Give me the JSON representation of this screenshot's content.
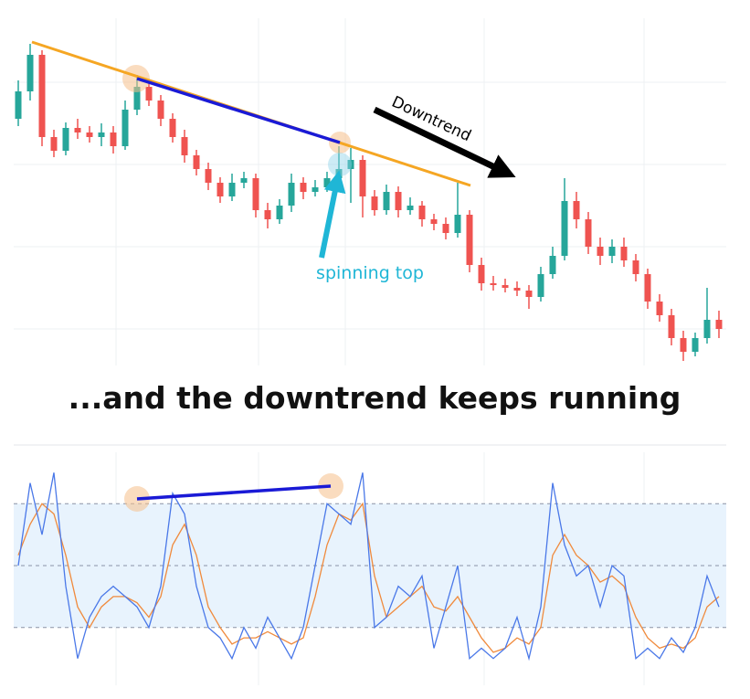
{
  "chart_data": [
    {
      "type": "candlestick",
      "title": "...and the downtrend keeps running",
      "annotations": [
        "Downtrend",
        "spinning top"
      ],
      "colors": {
        "up": "#26a69a",
        "down": "#ef5350"
      },
      "ylim": [
        0,
        400
      ],
      "open": [
        270,
        300,
        340,
        250,
        235,
        260,
        255,
        250,
        255,
        240,
        280,
        305,
        290,
        270,
        250,
        230,
        215,
        200,
        185,
        200,
        205,
        170,
        160,
        175,
        200,
        190,
        195,
        205,
        215,
        225,
        185,
        170,
        190,
        170,
        175,
        160,
        155,
        145,
        165,
        110,
        90,
        88,
        85,
        82,
        75,
        100,
        120,
        180,
        160,
        130,
        120,
        130,
        115,
        100,
        70,
        55,
        30,
        15,
        30,
        50
      ],
      "high": [
        312,
        352,
        345,
        258,
        266,
        270,
        262,
        265,
        262,
        290,
        318,
        310,
        296,
        276,
        258,
        236,
        222,
        206,
        210,
        212,
        210,
        178,
        182,
        210,
        206,
        203,
        212,
        240,
        238,
        230,
        192,
        198,
        196,
        184,
        180,
        166,
        162,
        200,
        170,
        118,
        98,
        95,
        92,
        88,
        108,
        130,
        205,
        190,
        168,
        140,
        138,
        140,
        122,
        106,
        78,
        62,
        38,
        36,
        85,
        60
      ],
      "low": [
        262,
        290,
        240,
        228,
        230,
        248,
        244,
        240,
        232,
        236,
        274,
        284,
        262,
        244,
        222,
        208,
        192,
        178,
        180,
        194,
        162,
        150,
        155,
        168,
        182,
        185,
        190,
        195,
        178,
        162,
        164,
        165,
        162,
        165,
        152,
        148,
        138,
        140,
        102,
        82,
        82,
        80,
        76,
        62,
        70,
        95,
        115,
        150,
        122,
        110,
        112,
        108,
        92,
        62,
        48,
        22,
        5,
        10,
        24,
        30
      ],
      "close": [
        300,
        340,
        250,
        235,
        260,
        255,
        250,
        255,
        240,
        280,
        305,
        290,
        270,
        250,
        230,
        215,
        200,
        185,
        200,
        205,
        170,
        160,
        175,
        200,
        190,
        195,
        205,
        215,
        225,
        185,
        170,
        190,
        170,
        175,
        160,
        155,
        145,
        165,
        110,
        90,
        88,
        85,
        82,
        75,
        100,
        120,
        180,
        160,
        130,
        120,
        130,
        115,
        100,
        70,
        55,
        30,
        15,
        30,
        50,
        40
      ]
    },
    {
      "type": "line",
      "ylim": [
        0,
        100
      ],
      "levels": [
        20,
        50,
        80
      ],
      "series": [
        {
          "color": "#4a78e8",
          "values": [
            50,
            90,
            65,
            95,
            40,
            5,
            25,
            35,
            40,
            35,
            30,
            20,
            40,
            85,
            75,
            40,
            20,
            15,
            5,
            20,
            10,
            25,
            15,
            5,
            20,
            50,
            80,
            75,
            70,
            95,
            20,
            25,
            40,
            35,
            45,
            10,
            30,
            50,
            5,
            10,
            5,
            10,
            25,
            5,
            30,
            90,
            60,
            45,
            50,
            30,
            50,
            45,
            5,
            10,
            5,
            15,
            8,
            20,
            45,
            30
          ]
        },
        {
          "color": "#f08a3c",
          "values": [
            55,
            70,
            80,
            75,
            55,
            30,
            20,
            30,
            35,
            35,
            32,
            25,
            35,
            60,
            70,
            55,
            30,
            20,
            12,
            15,
            15,
            18,
            15,
            12,
            15,
            35,
            60,
            75,
            72,
            80,
            45,
            25,
            30,
            35,
            40,
            30,
            28,
            35,
            25,
            15,
            8,
            10,
            15,
            12,
            20,
            55,
            65,
            55,
            50,
            42,
            45,
            40,
            25,
            15,
            10,
            12,
            10,
            15,
            30,
            35
          ]
        }
      ]
    }
  ]
}
